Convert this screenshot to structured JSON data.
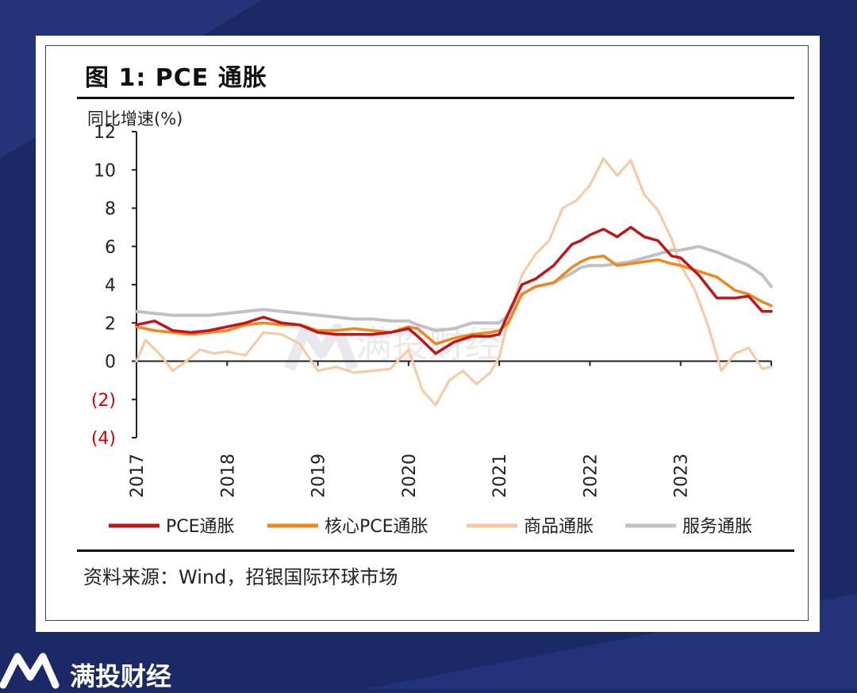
{
  "card": {
    "title": "图 1: PCE 通胀",
    "source": "资料来源：Wind，招银国际环球市场"
  },
  "watermark": "满投财经",
  "footer": {
    "brand": "满投财经"
  },
  "colors": {
    "pce": "#c0151b",
    "core": "#f0861e",
    "goods": "#f8c8a0",
    "services": "#c0c0c8",
    "negative_tick": "#d60000"
  },
  "chart_data": {
    "type": "line",
    "title": "图 1: PCE 通胀",
    "ylabel": "同比增速(%)",
    "xlabel": "",
    "ylim": [
      -4,
      12
    ],
    "yticks": [
      "12",
      "10",
      "8",
      "6",
      "4",
      "2",
      "0",
      "(2)",
      "(4)"
    ],
    "ytick_values": [
      12,
      10,
      8,
      6,
      4,
      2,
      0,
      -2,
      -4
    ],
    "xticks": [
      "2017",
      "2018",
      "2019",
      "2020",
      "2021",
      "2022",
      "2023"
    ],
    "xtick_values": [
      2017,
      2018,
      2019,
      2020,
      2021,
      2022,
      2023
    ],
    "xlim": [
      2017,
      2024
    ],
    "grid": false,
    "legend_position": "bottom",
    "series": [
      {
        "name": "PCE通胀",
        "x": [
          2017,
          2017.2,
          2017.4,
          2017.6,
          2017.8,
          2018,
          2018.2,
          2018.4,
          2018.6,
          2018.8,
          2019,
          2019.2,
          2019.4,
          2019.6,
          2019.8,
          2020,
          2020.1,
          2020.3,
          2020.5,
          2020.7,
          2020.9,
          2021,
          2021.1,
          2021.25,
          2021.4,
          2021.6,
          2021.8,
          2021.9,
          2022,
          2022.15,
          2022.3,
          2022.45,
          2022.6,
          2022.75,
          2022.9,
          2023,
          2023.2,
          2023.4,
          2023.6,
          2023.75,
          2023.9,
          2024
        ],
        "y": [
          1.9,
          2.1,
          1.6,
          1.5,
          1.6,
          1.8,
          2.0,
          2.3,
          2.0,
          1.9,
          1.5,
          1.4,
          1.4,
          1.4,
          1.5,
          1.7,
          1.3,
          0.4,
          1.0,
          1.3,
          1.3,
          1.4,
          2.5,
          4.0,
          4.3,
          5.0,
          6.1,
          6.3,
          6.6,
          6.9,
          6.5,
          7.0,
          6.5,
          6.3,
          5.5,
          5.4,
          4.5,
          3.3,
          3.3,
          3.4,
          2.6,
          2.6
        ]
      },
      {
        "name": "核心PCE通胀",
        "x": [
          2017,
          2017.2,
          2017.4,
          2017.6,
          2017.8,
          2018,
          2018.2,
          2018.4,
          2018.6,
          2018.8,
          2019,
          2019.2,
          2019.4,
          2019.6,
          2019.8,
          2020,
          2020.1,
          2020.3,
          2020.5,
          2020.7,
          2020.9,
          2021,
          2021.1,
          2021.25,
          2021.4,
          2021.6,
          2021.8,
          2021.9,
          2022,
          2022.15,
          2022.3,
          2022.45,
          2022.6,
          2022.75,
          2022.9,
          2023,
          2023.2,
          2023.4,
          2023.6,
          2023.75,
          2023.9,
          2024
        ],
        "y": [
          1.8,
          1.6,
          1.5,
          1.4,
          1.5,
          1.6,
          1.9,
          2.0,
          1.9,
          1.9,
          1.6,
          1.6,
          1.7,
          1.6,
          1.5,
          1.8,
          1.7,
          0.9,
          1.2,
          1.4,
          1.5,
          1.6,
          2.0,
          3.5,
          3.9,
          4.1,
          4.9,
          5.2,
          5.4,
          5.5,
          5.0,
          5.1,
          5.2,
          5.3,
          5.1,
          5.0,
          4.7,
          4.4,
          3.7,
          3.5,
          3.1,
          2.9
        ]
      },
      {
        "name": "商品通胀",
        "x": [
          2017,
          2017.1,
          2017.25,
          2017.4,
          2017.55,
          2017.7,
          2017.85,
          2018,
          2018.2,
          2018.4,
          2018.6,
          2018.8,
          2019,
          2019.2,
          2019.4,
          2019.6,
          2019.8,
          2020,
          2020.15,
          2020.3,
          2020.45,
          2020.6,
          2020.75,
          2020.9,
          2021,
          2021.1,
          2021.25,
          2021.4,
          2021.55,
          2021.7,
          2021.85,
          2022,
          2022.15,
          2022.3,
          2022.45,
          2022.6,
          2022.75,
          2022.9,
          2023,
          2023.15,
          2023.3,
          2023.45,
          2023.6,
          2023.75,
          2023.9,
          2024
        ],
        "y": [
          0.0,
          1.1,
          0.4,
          -0.5,
          0.0,
          0.6,
          0.4,
          0.5,
          0.3,
          1.5,
          1.4,
          0.9,
          -0.5,
          -0.3,
          -0.6,
          -0.5,
          -0.4,
          0.6,
          -1.5,
          -2.3,
          -1.0,
          -0.5,
          -1.2,
          -0.6,
          0.2,
          2.2,
          4.5,
          5.6,
          6.3,
          8.0,
          8.4,
          9.2,
          10.6,
          9.7,
          10.5,
          8.7,
          7.9,
          6.4,
          5.0,
          3.8,
          1.9,
          -0.5,
          0.4,
          0.7,
          -0.4,
          -0.3
        ]
      },
      {
        "name": "服务通胀",
        "x": [
          2017,
          2017.2,
          2017.4,
          2017.6,
          2017.8,
          2018,
          2018.2,
          2018.4,
          2018.6,
          2018.8,
          2019,
          2019.2,
          2019.4,
          2019.6,
          2019.8,
          2020,
          2020.1,
          2020.3,
          2020.5,
          2020.7,
          2020.9,
          2021,
          2021.1,
          2021.25,
          2021.4,
          2021.6,
          2021.8,
          2021.9,
          2022,
          2022.15,
          2022.3,
          2022.45,
          2022.6,
          2022.75,
          2022.9,
          2023,
          2023.2,
          2023.4,
          2023.6,
          2023.75,
          2023.9,
          2024
        ],
        "y": [
          2.6,
          2.5,
          2.4,
          2.4,
          2.4,
          2.5,
          2.6,
          2.7,
          2.6,
          2.5,
          2.4,
          2.3,
          2.2,
          2.2,
          2.1,
          2.1,
          1.9,
          1.6,
          1.7,
          2.0,
          2.0,
          2.0,
          2.4,
          3.5,
          3.9,
          4.1,
          4.6,
          4.9,
          5.0,
          5.0,
          5.1,
          5.2,
          5.4,
          5.6,
          5.8,
          5.8,
          6.0,
          5.7,
          5.3,
          5.0,
          4.5,
          3.9
        ]
      }
    ]
  }
}
